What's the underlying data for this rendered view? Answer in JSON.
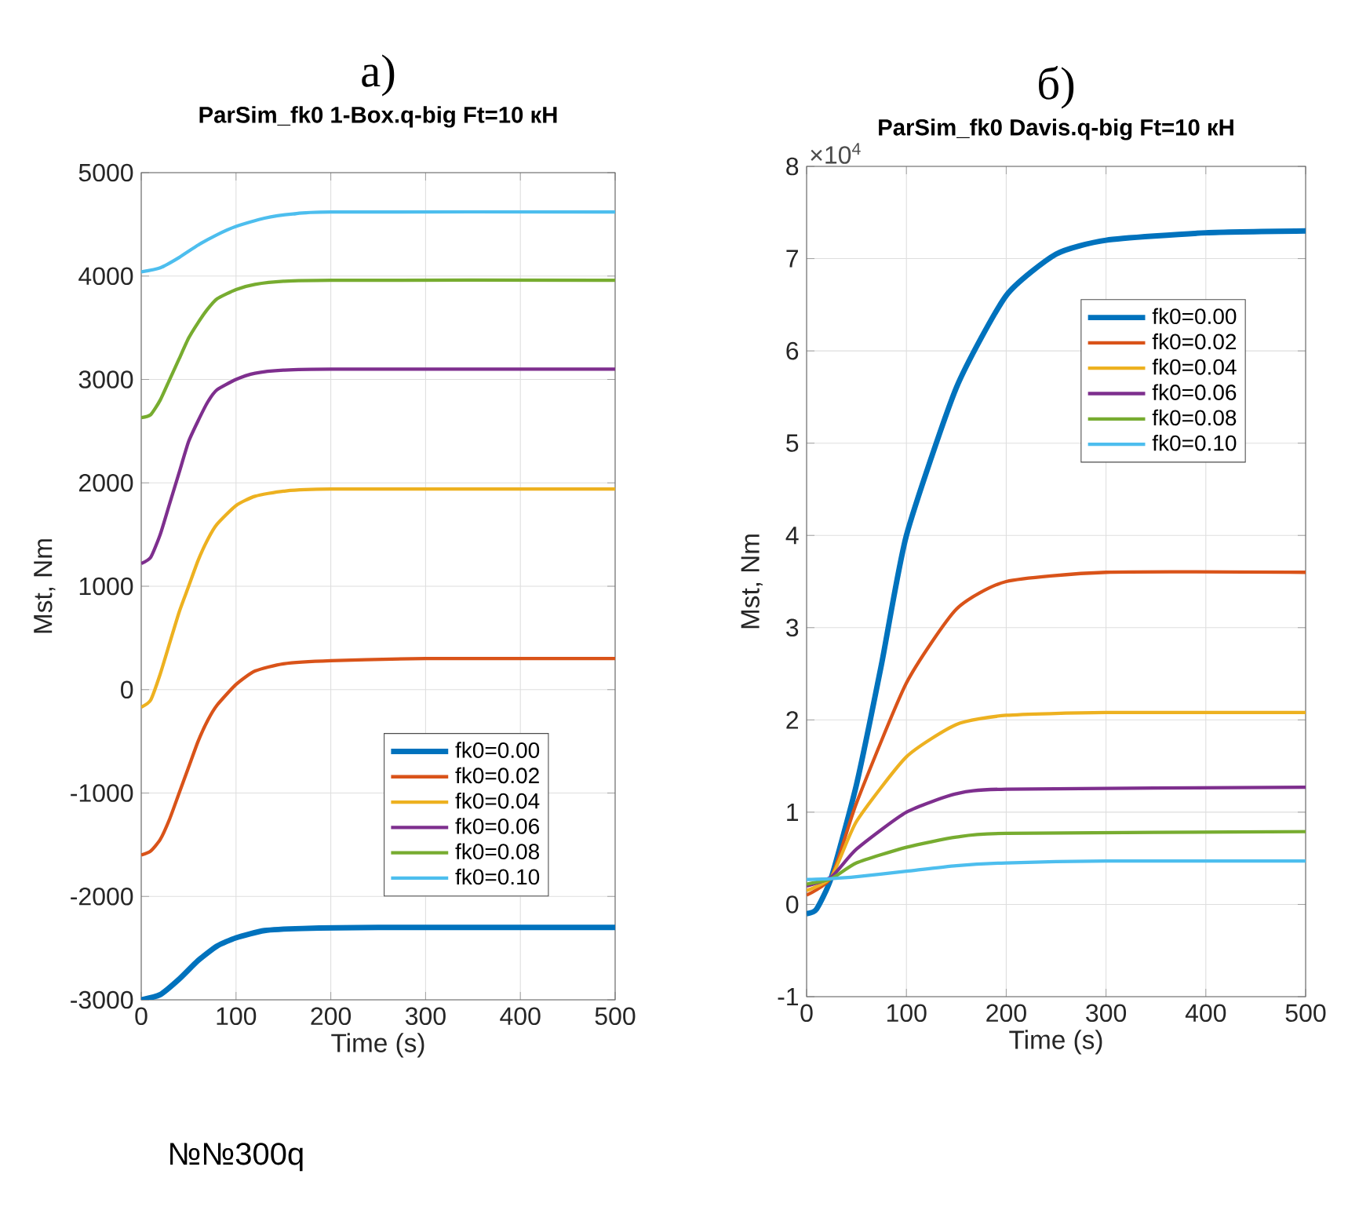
{
  "chart_data": [
    {
      "type": "line",
      "title": "а)",
      "subtitle": "ParSim_fk0 1-Box.q-big Ft=10 кН",
      "xlabel": "Time (s)",
      "ylabel": "Mst, Nm",
      "annotations": [
        "№№300q"
      ],
      "xlim": [
        0,
        500
      ],
      "ylim": [
        -3000,
        5000
      ],
      "xticks": [
        0,
        100,
        200,
        300,
        400,
        500
      ],
      "yticks": [
        -3000,
        -2000,
        -1000,
        0,
        1000,
        2000,
        3000,
        4000,
        5000
      ],
      "grid": true,
      "legend": "bottom right",
      "series": [
        {
          "name": "fk0=0.00",
          "color": "#0072bd",
          "x": [
            0,
            20,
            40,
            60,
            80,
            100,
            130,
            170,
            250,
            500
          ],
          "values": [
            -3000,
            -2950,
            -2800,
            -2620,
            -2480,
            -2400,
            -2330,
            -2310,
            -2300,
            -2300
          ]
        },
        {
          "name": "fk0=0.02",
          "color": "#d95319",
          "x": [
            0,
            10,
            20,
            30,
            40,
            50,
            60,
            70,
            80,
            100,
            120,
            150,
            200,
            300,
            500
          ],
          "values": [
            -1600,
            -1560,
            -1450,
            -1250,
            -1000,
            -750,
            -500,
            -300,
            -150,
            50,
            180,
            250,
            280,
            300,
            300
          ]
        },
        {
          "name": "fk0=0.04",
          "color": "#edb120",
          "x": [
            0,
            10,
            20,
            30,
            40,
            50,
            60,
            70,
            80,
            100,
            120,
            150,
            200,
            500
          ],
          "values": [
            -170,
            -100,
            150,
            450,
            750,
            1000,
            1250,
            1450,
            1600,
            1780,
            1870,
            1920,
            1940,
            1940
          ]
        },
        {
          "name": "fk0=0.06",
          "color": "#7e2f8e",
          "x": [
            0,
            10,
            20,
            30,
            40,
            50,
            60,
            70,
            80,
            100,
            120,
            150,
            200,
            500
          ],
          "values": [
            1220,
            1280,
            1500,
            1800,
            2100,
            2400,
            2600,
            2780,
            2900,
            3000,
            3060,
            3090,
            3100,
            3100
          ]
        },
        {
          "name": "fk0=0.08",
          "color": "#77ac30",
          "x": [
            0,
            10,
            20,
            30,
            40,
            50,
            60,
            70,
            80,
            100,
            120,
            150,
            200,
            500
          ],
          "values": [
            2630,
            2660,
            2800,
            3000,
            3200,
            3400,
            3550,
            3680,
            3780,
            3870,
            3920,
            3950,
            3960,
            3960
          ]
        },
        {
          "name": "fk0=0.10",
          "color": "#4dbeee",
          "x": [
            0,
            20,
            40,
            60,
            80,
            100,
            130,
            160,
            200,
            500
          ],
          "values": [
            4040,
            4080,
            4180,
            4300,
            4400,
            4480,
            4560,
            4600,
            4620,
            4620
          ]
        }
      ]
    },
    {
      "type": "line",
      "title": "б)",
      "subtitle": "ParSim_fk0 Davis.q-big Ft=10 кН",
      "xlabel": "Time (s)",
      "ylabel": "Mst, Nm",
      "annotations": [
        "×10$^{4}$"
      ],
      "xlim": [
        0,
        500
      ],
      "ylim": [
        -1,
        8
      ],
      "xticks": [
        0,
        100,
        200,
        300,
        400,
        500
      ],
      "yticks": [
        -1,
        0,
        1,
        2,
        3,
        4,
        5,
        6,
        7,
        8
      ],
      "grid": true,
      "legend": "top right",
      "series": [
        {
          "name": "fk0=0.00",
          "color": "#0072bd",
          "x": [
            0,
            10,
            25,
            50,
            75,
            100,
            150,
            200,
            250,
            300,
            400,
            500
          ],
          "values": [
            -0.1,
            -0.05,
            0.3,
            1.3,
            2.6,
            4.0,
            5.6,
            6.6,
            7.05,
            7.2,
            7.28,
            7.3
          ]
        },
        {
          "name": "fk0=0.02",
          "color": "#d95319",
          "x": [
            0,
            25,
            50,
            100,
            150,
            200,
            300,
            500
          ],
          "values": [
            0.1,
            0.3,
            1.1,
            2.4,
            3.2,
            3.5,
            3.6,
            3.6
          ]
        },
        {
          "name": "fk0=0.04",
          "color": "#edb120",
          "x": [
            0,
            25,
            50,
            100,
            150,
            200,
            300,
            500
          ],
          "values": [
            0.15,
            0.3,
            0.9,
            1.6,
            1.95,
            2.05,
            2.08,
            2.08
          ]
        },
        {
          "name": "fk0=0.06",
          "color": "#7e2f8e",
          "x": [
            0,
            25,
            50,
            100,
            150,
            200,
            500
          ],
          "values": [
            0.2,
            0.3,
            0.6,
            1.0,
            1.2,
            1.25,
            1.27
          ]
        },
        {
          "name": "fk0=0.08",
          "color": "#77ac30",
          "x": [
            0,
            25,
            50,
            100,
            150,
            200,
            500
          ],
          "values": [
            0.22,
            0.28,
            0.45,
            0.62,
            0.73,
            0.77,
            0.79
          ]
        },
        {
          "name": "fk0=0.10",
          "color": "#4dbeee",
          "x": [
            0,
            25,
            50,
            100,
            150,
            200,
            300,
            500
          ],
          "values": [
            0.27,
            0.28,
            0.3,
            0.36,
            0.42,
            0.45,
            0.47,
            0.47
          ]
        }
      ]
    }
  ]
}
